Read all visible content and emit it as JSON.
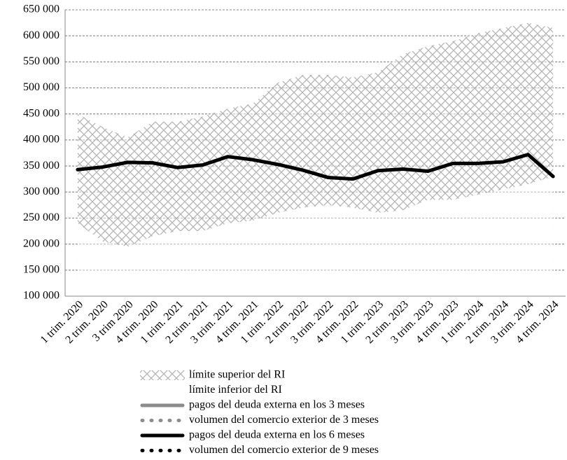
{
  "chart_data": {
    "type": "line",
    "categories": [
      "1 trim. 2020",
      "2 trim. 2020",
      "3 trim 2020",
      "4 trim. 2020",
      "1 trim. 2021",
      "2 trim. 2021",
      "3 trim. 2021",
      "4 trim. 2021",
      "1 trim. 2022",
      "2 trim. 2022",
      "3 trim. 2022",
      "4 trim. 2022",
      "1 trim. 2023",
      "2 trim. 2023",
      "3 trim. 2023",
      "4 trim. 2023",
      "1 trim. 2024",
      "2 trim. 2024",
      "3 trim. 2024",
      "4 trim. 2024"
    ],
    "series": [
      {
        "name": "límite superior del RI",
        "color": "#b4b4b4",
        "kind": "area",
        "pattern": "crosshatch",
        "values": [
          450000,
          425000,
          405000,
          435000,
          435000,
          445000,
          460000,
          470000,
          510000,
          525000,
          525000,
          520000,
          530000,
          565000,
          580000,
          590000,
          605000,
          615000,
          625000,
          615000
        ]
      },
      {
        "name": "límite inferior del RI",
        "color": "#ffffff",
        "kind": "area",
        "values": [
          240000,
          205000,
          195000,
          215000,
          225000,
          225000,
          240000,
          245000,
          260000,
          270000,
          275000,
          270000,
          260000,
          265000,
          285000,
          285000,
          295000,
          305000,
          315000,
          330000
        ]
      },
      {
        "name": "pagos del deuda externa en los 3 meses",
        "color": "#8c8c8c",
        "kind": "line",
        "dotted": false,
        "values": [
          null,
          null,
          null,
          null,
          null,
          null,
          null,
          null,
          null,
          null,
          null,
          null,
          null,
          null,
          null,
          null,
          null,
          null,
          null,
          null
        ]
      },
      {
        "name": "volumen del comercio exterior de 3 meses",
        "color": "#8c8c8c",
        "kind": "line",
        "dotted": true,
        "values": [
          null,
          null,
          null,
          null,
          null,
          null,
          null,
          null,
          null,
          null,
          null,
          null,
          null,
          null,
          null,
          null,
          null,
          null,
          null,
          null
        ]
      },
      {
        "name": "pagos del deuda externa en los 6 meses",
        "color": "#000000",
        "kind": "line",
        "dotted": false,
        "values": [
          343000,
          348000,
          357000,
          356000,
          347000,
          352000,
          368000,
          362000,
          353000,
          342000,
          328000,
          325000,
          341000,
          344000,
          340000,
          355000,
          355000,
          358000,
          372000,
          330000
        ]
      },
      {
        "name": "volumen del comercio exterior de 9 meses",
        "color": "#000000",
        "kind": "line",
        "dotted": true,
        "values": [
          null,
          null,
          null,
          null,
          null,
          null,
          null,
          null,
          null,
          null,
          null,
          null,
          null,
          null,
          null,
          null,
          null,
          null,
          null,
          null
        ]
      }
    ],
    "ylim": [
      100000,
      650000
    ],
    "yticks": [
      {
        "value": 100000,
        "label": "100 000"
      },
      {
        "value": 150000,
        "label": "150 000"
      },
      {
        "value": 200000,
        "label": "200 000"
      },
      {
        "value": 250000,
        "label": "250 000"
      },
      {
        "value": 300000,
        "label": "300 000"
      },
      {
        "value": 350000,
        "label": "350 000"
      },
      {
        "value": 400000,
        "label": "400 000"
      },
      {
        "value": 450000,
        "label": "450 000"
      },
      {
        "value": 500000,
        "label": "500 000"
      },
      {
        "value": 550000,
        "label": "550 000"
      },
      {
        "value": 600000,
        "label": "600 000"
      },
      {
        "value": 650000,
        "label": "650 000"
      }
    ],
    "grid": true,
    "legend": "bottom"
  }
}
